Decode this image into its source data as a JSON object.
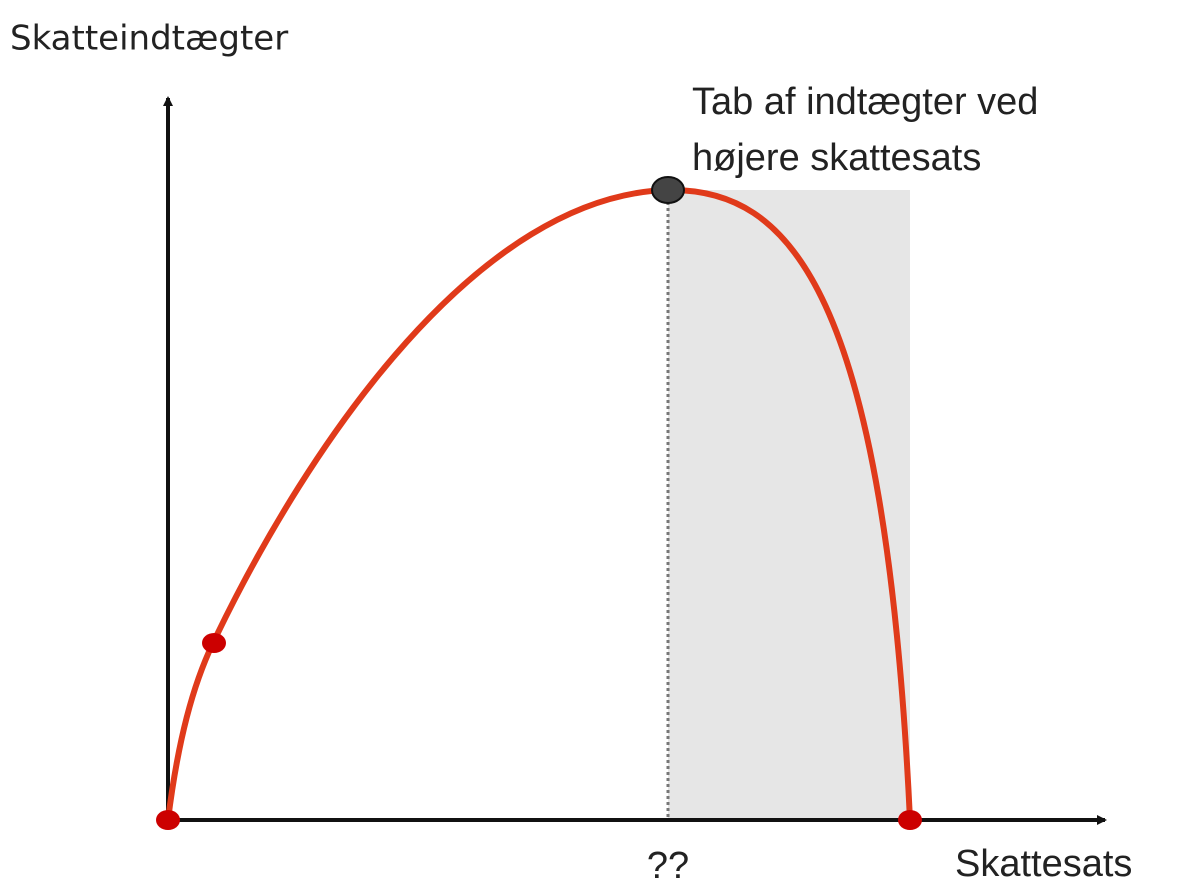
{
  "axes": {
    "y_label": "Skatteindtægter",
    "x_label": "Skattesats"
  },
  "annotation": {
    "lines": [
      "Tab af indtægter ved",
      "højere skattesats"
    ]
  },
  "peak_label": "??"
}
